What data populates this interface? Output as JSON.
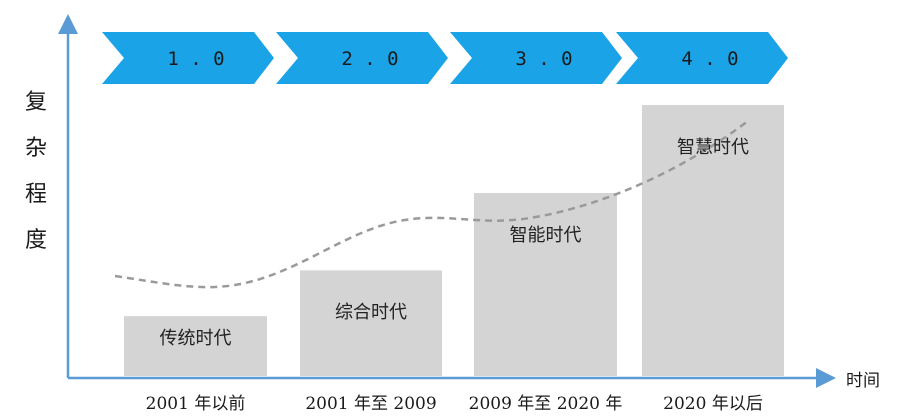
{
  "axes": {
    "y_label": "复杂程度",
    "x_label": "时间",
    "color": "#5b9bd5"
  },
  "stages": [
    {
      "version": "1.0",
      "era": "传统时代",
      "period": "2001 年以前",
      "level": 0.17
    },
    {
      "version": "2.0",
      "era": "综合时代",
      "period": "2001 年至 2009",
      "level": 0.3
    },
    {
      "version": "3.0",
      "era": "智能时代",
      "period": "2009 年至 2020 年",
      "level": 0.52
    },
    {
      "version": "4.0",
      "era": "智慧时代",
      "period": "2020 年以后",
      "level": 0.77
    }
  ],
  "colors": {
    "chevron": "#1ba3e8",
    "bar": "#d4d4d4",
    "trend_line": "#9a9a9a",
    "text": "#1a1a1a"
  },
  "trend": {
    "style": "dashed",
    "shape": "rising-s-curve"
  }
}
